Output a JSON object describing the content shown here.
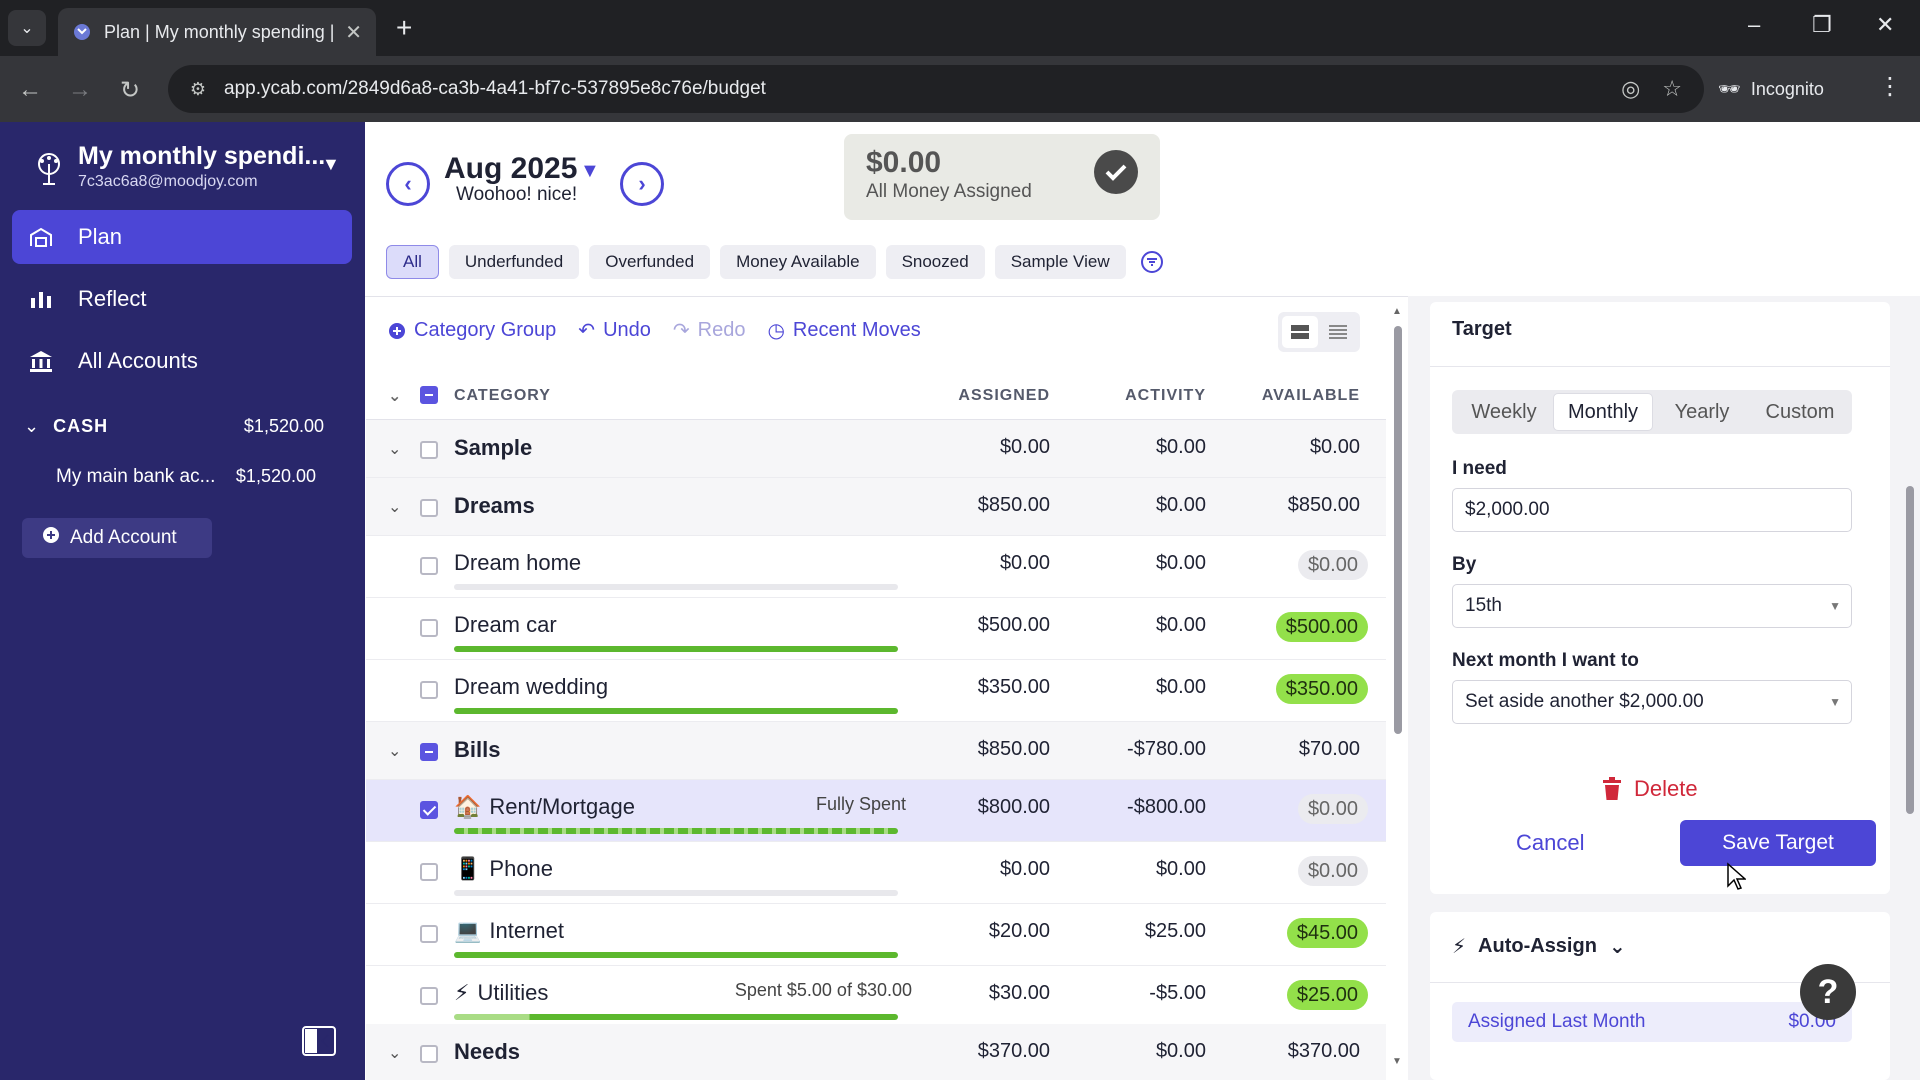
{
  "browser": {
    "tab_title": "Plan | My monthly spending | Y",
    "url": "app.ycab.com/2849d6a8-ca3b-4a41-bf7c-537895e8c76e/budget",
    "incognito_label": "Incognito"
  },
  "sidebar": {
    "budget_name": "My monthly spendi...",
    "budget_email": "7c3ac6a8@moodjoy.com",
    "nav": [
      {
        "label": "Plan",
        "icon": "plan-icon",
        "active": true
      },
      {
        "label": "Reflect",
        "icon": "bar-chart-icon",
        "active": false
      },
      {
        "label": "All Accounts",
        "icon": "bank-icon",
        "active": false
      }
    ],
    "account_group": {
      "label": "CASH",
      "amount": "$1,520.00"
    },
    "accounts": [
      {
        "name": "My main bank ac...",
        "amount": "$1,520.00"
      }
    ],
    "add_account_label": "Add Account",
    "colors": {
      "background": "#29276b",
      "active": "#4c46d6"
    }
  },
  "header": {
    "month": "Aug 2025",
    "month_sub": "Woohoo! nice!",
    "ready_to_assign": {
      "amount": "$0.00",
      "label": "All Money Assigned"
    }
  },
  "filters": {
    "chips": [
      "All",
      "Underfunded",
      "Overfunded",
      "Money Available",
      "Snoozed",
      "Sample View"
    ],
    "active": "All"
  },
  "actions": {
    "category_group": "Category Group",
    "undo": "Undo",
    "redo": "Redo",
    "recent_moves": "Recent Moves"
  },
  "table": {
    "headers": {
      "category": "CATEGORY",
      "assigned": "ASSIGNED",
      "activity": "ACTIVITY",
      "available": "AVAILABLE"
    },
    "rows": [
      {
        "type": "group",
        "name": "Sample",
        "assigned": "$0.00",
        "activity": "$0.00",
        "available": "$0.00"
      },
      {
        "type": "group",
        "name": "Dreams",
        "assigned": "$850.00",
        "activity": "$0.00",
        "available": "$850.00"
      },
      {
        "type": "item",
        "name": "Dream home",
        "assigned": "$0.00",
        "activity": "$0.00",
        "available": "$0.00",
        "pill": "gray",
        "progress": 0
      },
      {
        "type": "item",
        "name": "Dream car",
        "assigned": "$500.00",
        "activity": "$0.00",
        "available": "$500.00",
        "pill": "green",
        "progress": 1
      },
      {
        "type": "item",
        "name": "Dream wedding",
        "assigned": "$350.00",
        "activity": "$0.00",
        "available": "$350.00",
        "pill": "green",
        "progress": 1
      },
      {
        "type": "group",
        "name": "Bills",
        "assigned": "$850.00",
        "activity": "-$780.00",
        "available": "$70.00"
      },
      {
        "type": "item",
        "name": "Rent/Mortgage",
        "emoji": "🏠",
        "note": "Fully Spent",
        "assigned": "$800.00",
        "activity": "-$800.00",
        "available": "$0.00",
        "pill": "gray",
        "progress": 1,
        "striped": true,
        "selected": true
      },
      {
        "type": "item",
        "name": "Phone",
        "emoji": "📱",
        "assigned": "$0.00",
        "activity": "$0.00",
        "available": "$0.00",
        "pill": "gray",
        "progress": 0
      },
      {
        "type": "item",
        "name": "Internet",
        "emoji": "💻",
        "assigned": "$20.00",
        "activity": "$25.00",
        "available": "$45.00",
        "pill": "green",
        "progress": 1
      },
      {
        "type": "item",
        "name": "Utilities",
        "emoji": "⚡",
        "note": "Spent $5.00 of $30.00",
        "assigned": "$30.00",
        "activity": "-$5.00",
        "available": "$25.00",
        "pill": "green",
        "progress": 1,
        "striped_part": 0.17
      },
      {
        "type": "group",
        "name": "Needs",
        "assigned": "$370.00",
        "activity": "$0.00",
        "available": "$370.00"
      }
    ]
  },
  "inspector": {
    "target_title": "Target",
    "cadence_options": [
      "Weekly",
      "Monthly",
      "Yearly",
      "Custom"
    ],
    "cadence_selected": "Monthly",
    "need_label": "I need",
    "need_value": "$2,000.00",
    "by_label": "By",
    "by_value": "15th",
    "next_label": "Next month I want to",
    "next_value": "Set aside another $2,000.00",
    "delete_label": "Delete",
    "cancel_label": "Cancel",
    "save_label": "Save Target",
    "auto_assign_label": "Auto-Assign",
    "auto_rows": [
      {
        "label": "Assigned Last Month",
        "value": "$0.00"
      }
    ]
  }
}
